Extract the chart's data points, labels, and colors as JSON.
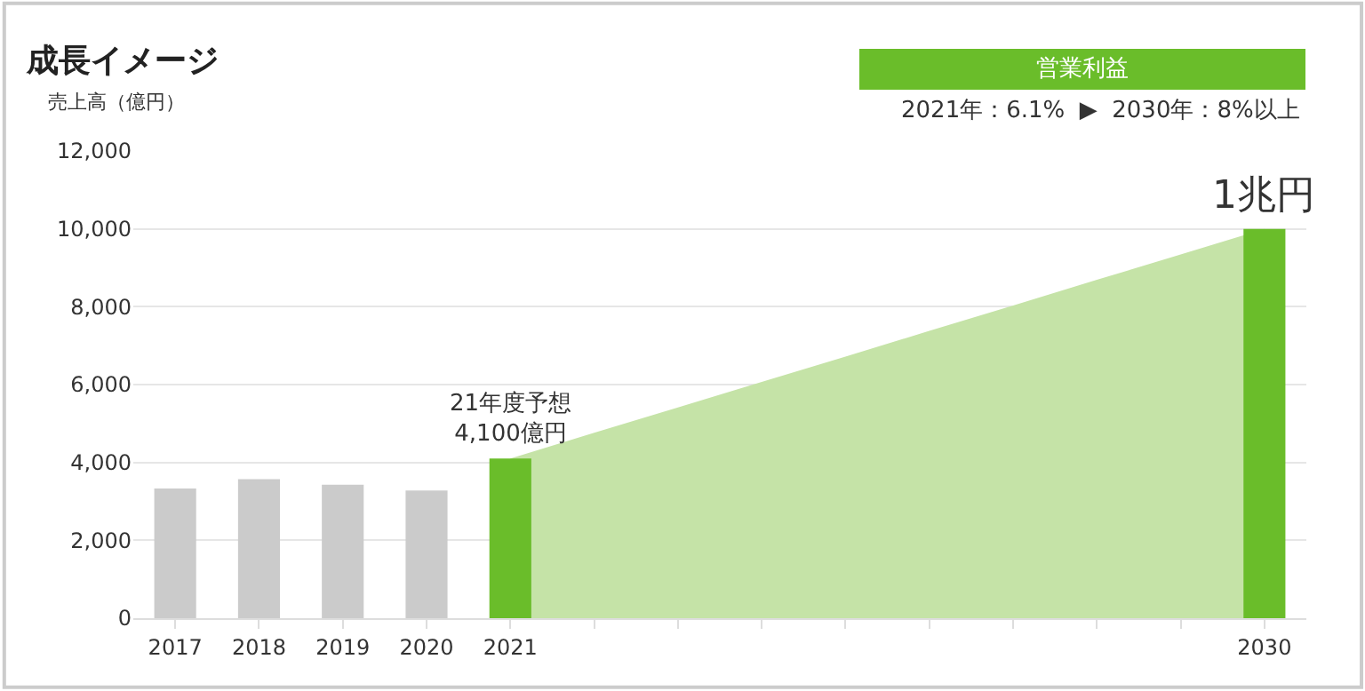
{
  "chart_data": {
    "type": "bar",
    "title": "成長イメージ",
    "ylabel": "売上高（億円）",
    "categories": [
      "2017",
      "2018",
      "2019",
      "2020",
      "2021",
      null,
      null,
      null,
      null,
      null,
      null,
      null,
      null,
      "2030"
    ],
    "series": [
      {
        "type": "area",
        "color": "#c5e3a7",
        "values": [
          null,
          null,
          null,
          null,
          4100,
          4760,
          5410,
          6070,
          6720,
          7380,
          8030,
          8690,
          9340,
          10000
        ]
      },
      {
        "colors": [
          "#cbcbcb",
          "#cbcbcb",
          "#cbcbcb",
          "#cbcbcb",
          "#6abd2a",
          null,
          null,
          null,
          null,
          null,
          null,
          null,
          null,
          "#6abd2a"
        ],
        "values": [
          3330,
          3570,
          3430,
          3280,
          4100,
          null,
          null,
          null,
          null,
          null,
          null,
          null,
          null,
          10000
        ]
      }
    ],
    "ylim": [
      0,
      12000
    ],
    "yticks": [
      {
        "value": 0,
        "label": "0"
      },
      {
        "value": 2000,
        "label": "2,000"
      },
      {
        "value": 4000,
        "label": "4,000"
      },
      {
        "value": 6000,
        "label": "6,000"
      },
      {
        "value": 8000,
        "label": "8,000"
      },
      {
        "value": 10000,
        "label": "10,000"
      },
      {
        "value": 12000,
        "label": "12,000"
      }
    ],
    "grid": "y",
    "legend": false,
    "annotations": [
      {
        "text": "21年度予想\n4,100億円",
        "x": "2021",
        "y": 4100
      },
      {
        "text": "1兆円",
        "x": "2030",
        "y": 10000
      },
      "営業利益",
      "2021年：6.1%  ▶  2030年：8%以上"
    ]
  }
}
